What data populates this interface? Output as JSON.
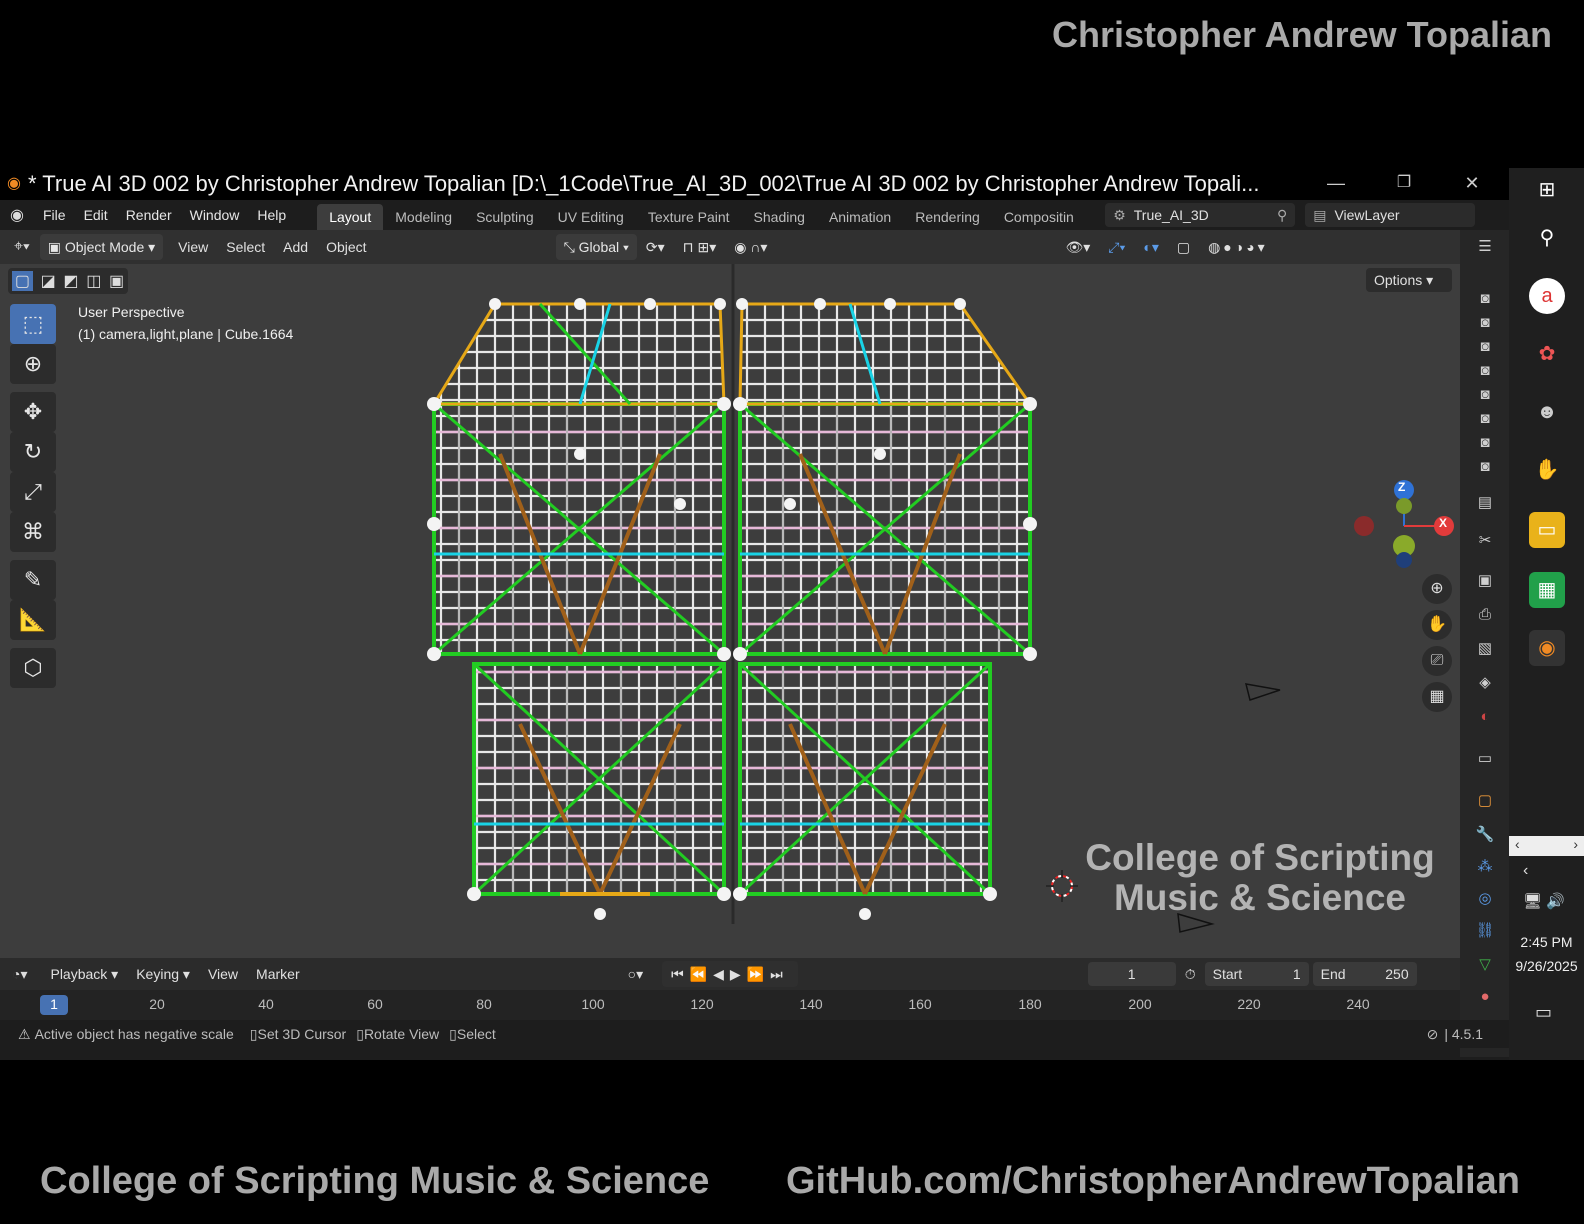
{
  "brand": {
    "top": "Christopher Andrew Topalian",
    "bottom_left": "College of Scripting Music & Science",
    "bottom_right": "GitHub.com/ChristopherAndrewTopalian"
  },
  "window": {
    "title": "* True AI 3D 002 by Christopher Andrew Topalian [D:\\_1Code\\True_AI_3D_002\\True AI 3D 002 by Christopher Andrew Topali...",
    "minimize": "—",
    "restore": "❐",
    "close": "✕"
  },
  "menu": [
    "File",
    "Edit",
    "Render",
    "Window",
    "Help"
  ],
  "workspaces": [
    "Layout",
    "Modeling",
    "Sculpting",
    "UV Editing",
    "Texture Paint",
    "Shading",
    "Animation",
    "Rendering",
    "Compositin"
  ],
  "scene": {
    "name": "True_AI_3D",
    "view_layer": "ViewLayer"
  },
  "viewport_header": {
    "mode": "Object Mode",
    "menus": [
      "View",
      "Select",
      "Add",
      "Object"
    ],
    "orientation": "Global",
    "options": "Options"
  },
  "viewport": {
    "perspective": "User Perspective",
    "collection_info": "(1) camera,light,plane | Cube.1664",
    "watermark_line1": "College of Scripting",
    "watermark_line2": "Music & Science",
    "gizmo": {
      "z": "Z",
      "x": "X"
    }
  },
  "timeline": {
    "menus": [
      "Playback",
      "Keying",
      "View",
      "Marker"
    ],
    "current_frame": "1",
    "start_label": "Start",
    "start_value": "1",
    "end_label": "End",
    "end_value": "250",
    "ruler_ticks": [
      "1",
      "20",
      "40",
      "60",
      "80",
      "100",
      "120",
      "140",
      "160",
      "180",
      "200",
      "220",
      "240"
    ]
  },
  "status": {
    "warning": "Active object has negative scale",
    "hint1": "Set 3D Cursor",
    "hint2": "Rotate View",
    "hint3": "Select",
    "version": "4.5.1"
  },
  "taskbar": {
    "time": "2:45 PM",
    "date": "9/26/2025"
  },
  "colors": {
    "accent": "#4772b3",
    "green": "#22cc22",
    "orange": "#e6a817",
    "cyan": "#19d3e6",
    "pink": "#e6b8d8",
    "brown": "#a0601a"
  }
}
